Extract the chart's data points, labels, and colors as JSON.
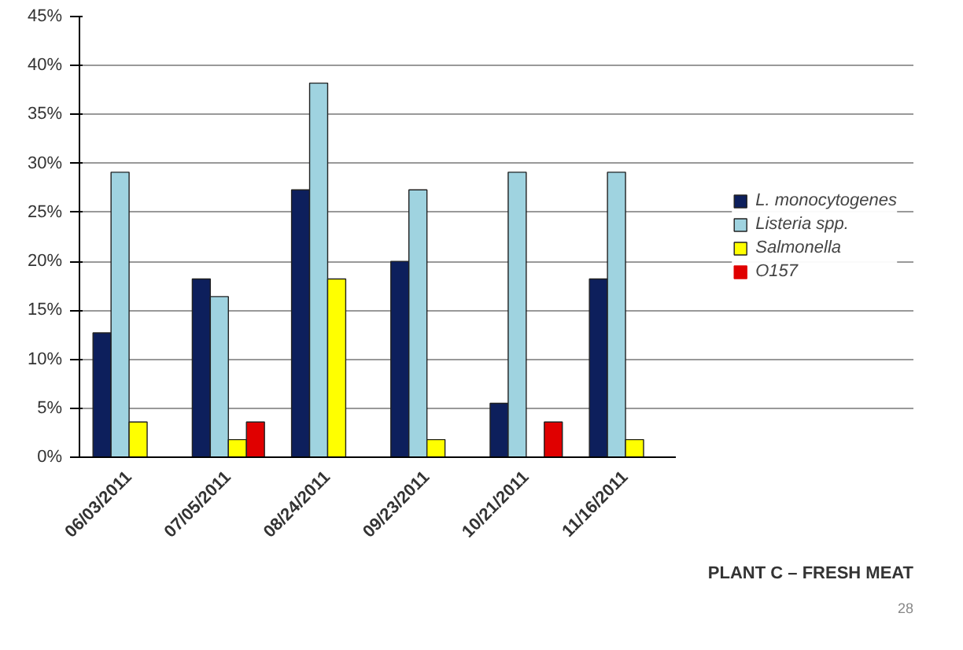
{
  "chart_data": {
    "type": "bar",
    "categories": [
      "06/03/2011",
      "07/05/2011",
      "08/24/2011",
      "09/23/2011",
      "10/21/2011",
      "11/16/2011"
    ],
    "series": [
      {
        "name": "L. monocytogenes",
        "color": "#0d1f5c",
        "values": [
          12.7,
          18.2,
          27.3,
          20.0,
          5.5,
          18.2
        ]
      },
      {
        "name": "Listeria spp.",
        "color": "#9fd3e0",
        "values": [
          29.1,
          16.4,
          38.2,
          27.3,
          29.1,
          29.1
        ]
      },
      {
        "name": "Salmonella",
        "color": "#ffff00",
        "values": [
          3.6,
          1.8,
          18.2,
          1.8,
          0,
          1.8
        ]
      },
      {
        "name": "O157",
        "color": "#e00000",
        "values": [
          0,
          3.6,
          0,
          0,
          3.6,
          0
        ]
      }
    ],
    "ylim": [
      0,
      45
    ],
    "yticks": [
      {
        "value": 0,
        "label": "0%"
      },
      {
        "value": 5,
        "label": "5%"
      },
      {
        "value": 10,
        "label": "10%"
      },
      {
        "value": 15,
        "label": "15%"
      },
      {
        "value": 20,
        "label": "20%"
      },
      {
        "value": 25,
        "label": "25%"
      },
      {
        "value": 30,
        "label": "30%"
      },
      {
        "value": 35,
        "label": "35%"
      },
      {
        "value": 40,
        "label": "40%"
      },
      {
        "value": 45,
        "label": "45%"
      }
    ],
    "grid": "y",
    "legend": "right",
    "annotations": [
      "PLANT C – FRESH MEAT",
      "28"
    ]
  }
}
